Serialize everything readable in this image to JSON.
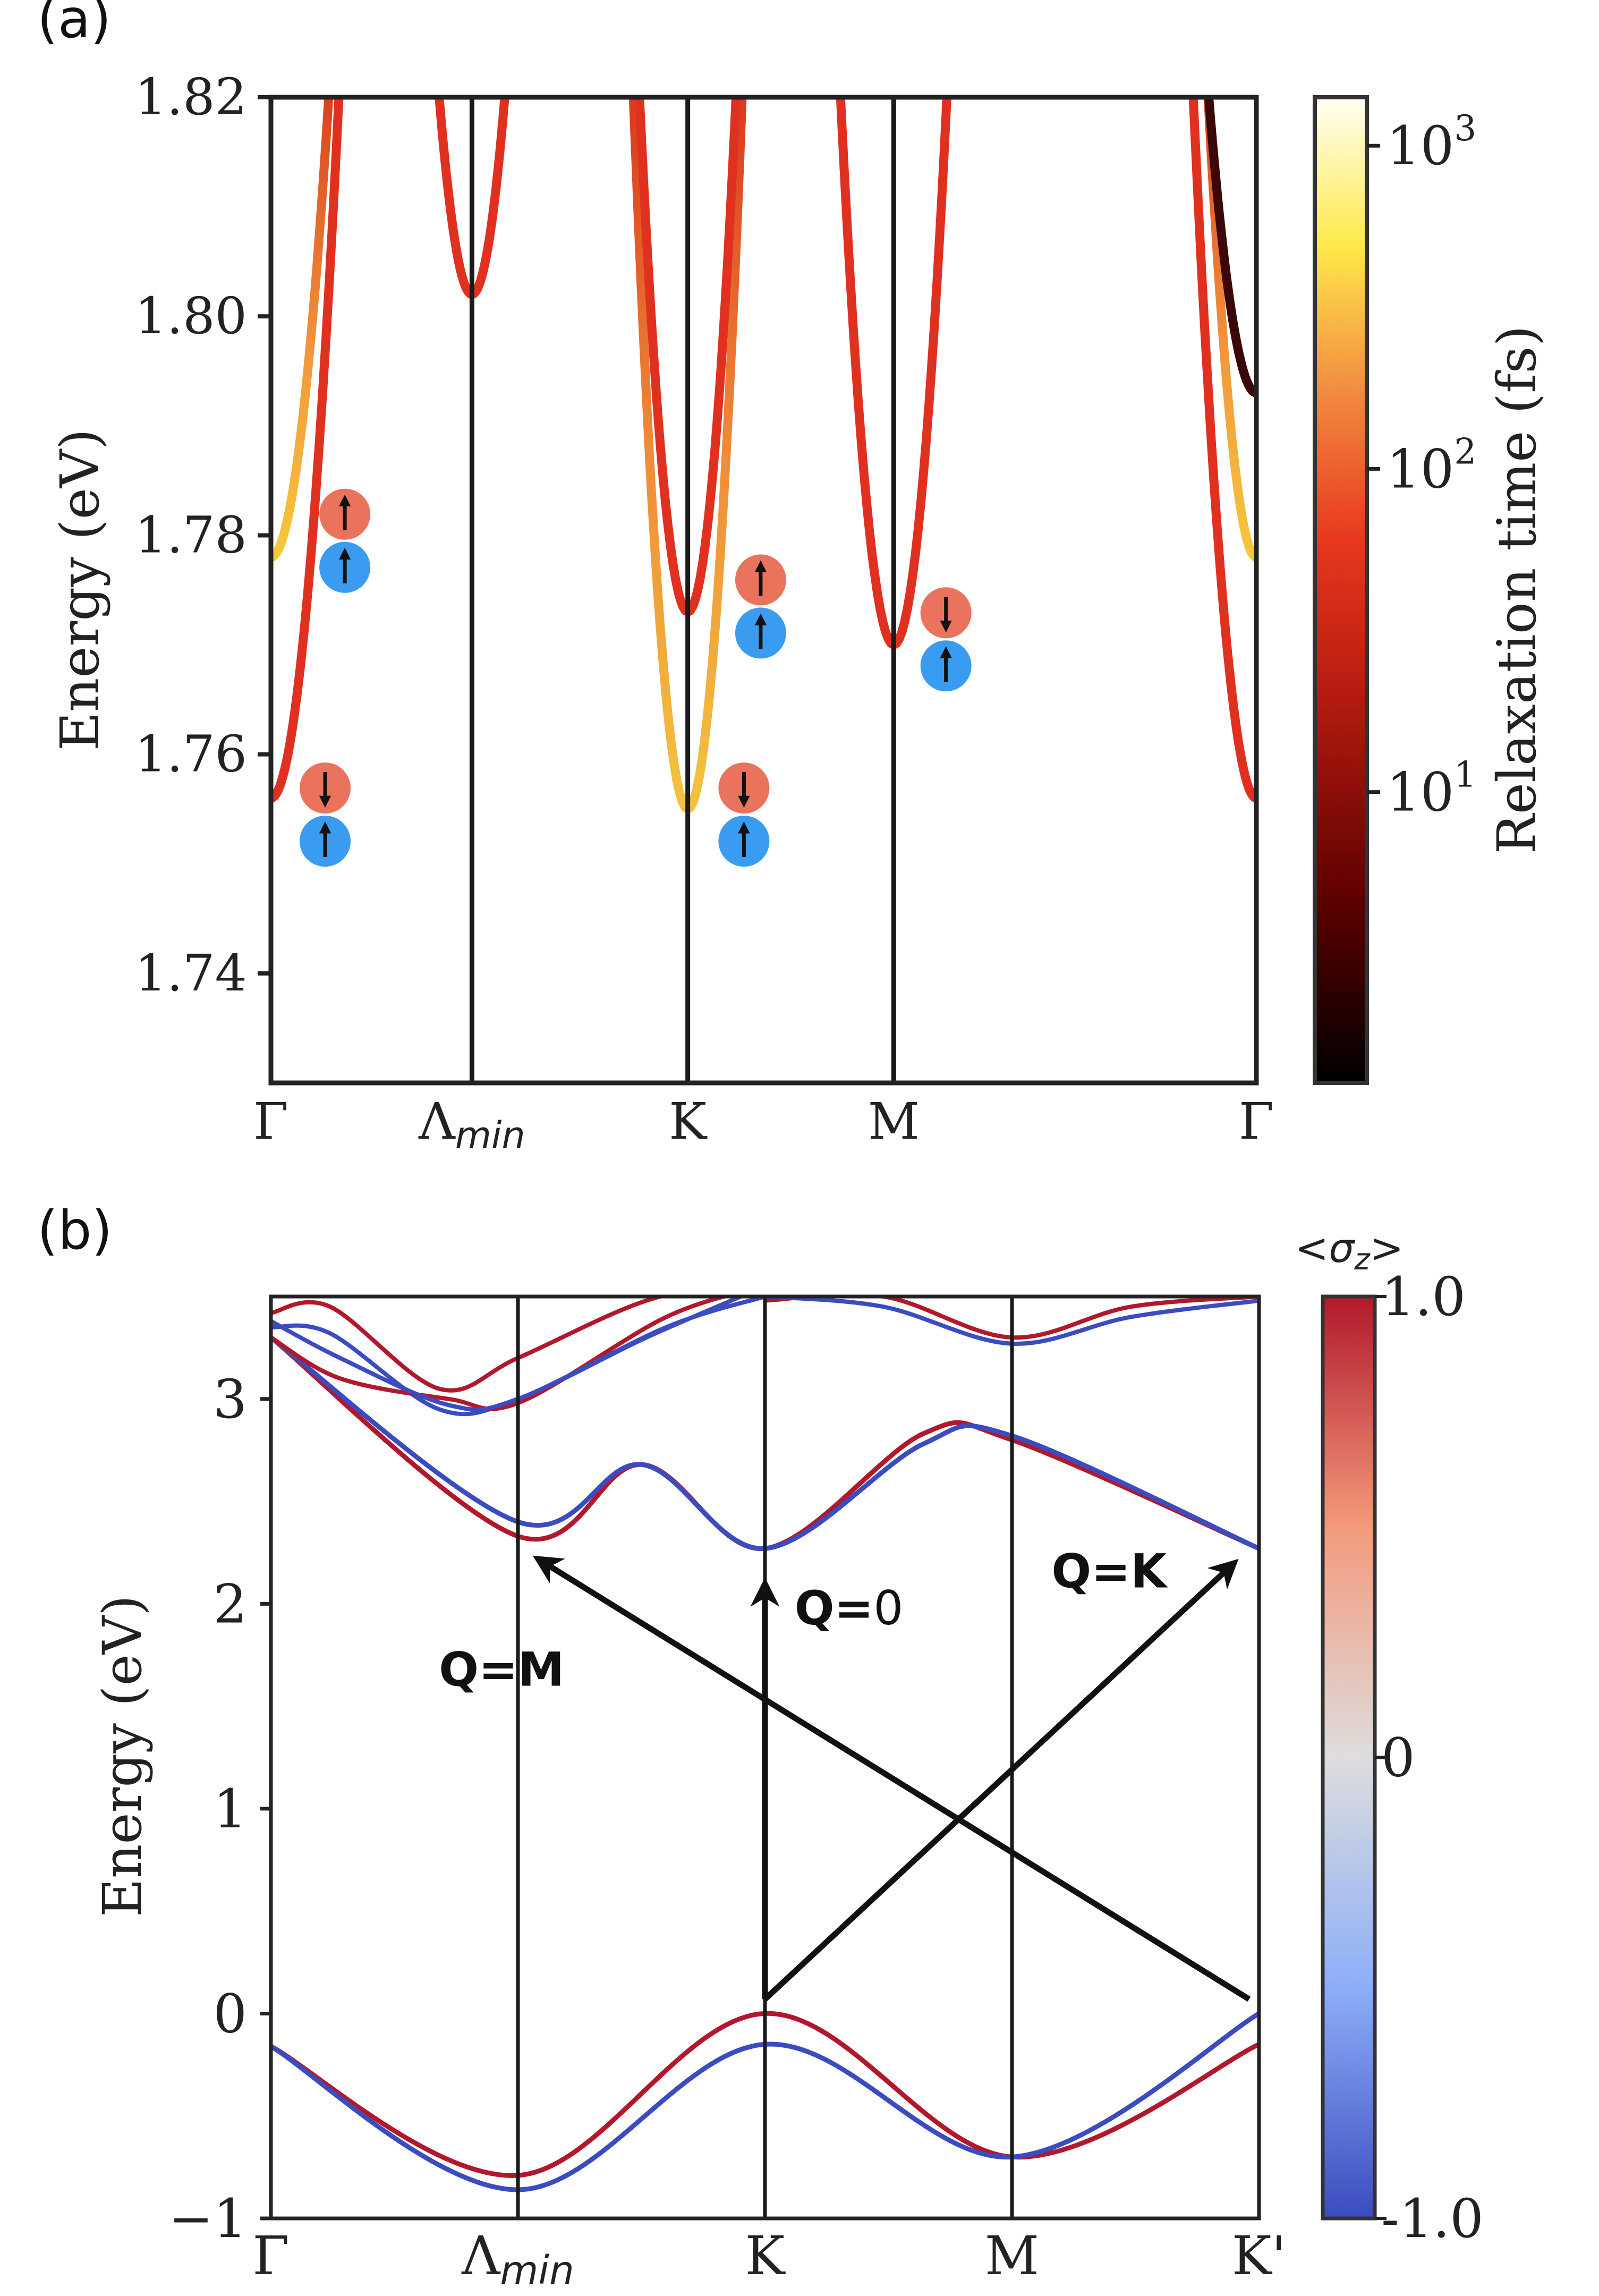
{
  "chart_data": [
    {
      "panel": "(a)",
      "type": "line",
      "ylabel": "Energy (eV)",
      "ylim": [
        1.73,
        1.82
      ],
      "yticks": [
        "1.82",
        "1.80",
        "1.78",
        "1.76",
        "1.74"
      ],
      "xticks": [
        "Γ",
        "Λ",
        "K",
        "M",
        "Γ"
      ],
      "xtick_sub": "min",
      "kpoints": [
        0,
        0.204,
        0.423,
        0.632,
        1.0
      ],
      "colorbar": {
        "label": "Relaxation time (fs)",
        "scale": "log",
        "tick_base": "10",
        "tick_exps": [
          "3",
          "2",
          "1"
        ]
      },
      "colors": {
        "hot_low": "#200000",
        "hot_mid": "#e03020",
        "hot_high": "#ffff60",
        "spin_red": "#e9735c",
        "spin_blue": "#3a9cf0"
      },
      "band_minima": [
        {
          "k": "Γ",
          "E": 1.756
        },
        {
          "k": "Γ",
          "E": 1.778
        },
        {
          "k": "Λmin",
          "E": 1.802
        },
        {
          "k": "K",
          "E": 1.755
        },
        {
          "k": "K",
          "E": 1.773
        },
        {
          "k": "M",
          "E": 1.77
        }
      ],
      "spin_annotations": [
        {
          "k": "Γ",
          "E": 1.7795,
          "top_spin": "up",
          "bottom_spin": "up"
        },
        {
          "k": "Γ",
          "E": 1.7545,
          "top_spin": "down",
          "bottom_spin": "up"
        },
        {
          "k": "K",
          "E": 1.7735,
          "top_spin": "up",
          "bottom_spin": "up"
        },
        {
          "k": "K",
          "E": 1.7545,
          "top_spin": "down",
          "bottom_spin": "up"
        },
        {
          "k": "M",
          "E": 1.7705,
          "top_spin": "down",
          "bottom_spin": "up"
        }
      ]
    },
    {
      "panel": "(b)",
      "type": "line",
      "ylabel": "Energy (eV)",
      "ylim": [
        -1.0,
        3.5
      ],
      "yticks": [
        "3",
        "2",
        "1",
        "0",
        "−1"
      ],
      "xticks": [
        "Γ",
        "Λ",
        "K",
        "M",
        "K'"
      ],
      "xtick_sub": "min",
      "kpoints": [
        0,
        0.25,
        0.5,
        0.75,
        1.0
      ],
      "colorbar": {
        "label": "<σ",
        "label_sub": "z",
        "label_end": ">",
        "ticks": [
          "1.0",
          "0",
          "-1.0"
        ],
        "range": [
          -1.0,
          1.0
        ]
      },
      "colors": {
        "spin_plus": "#b2182b",
        "spin_minus": "#3b4cc0",
        "neutral": "#dddddd"
      },
      "series": [
        {
          "name": "valence spin +1",
          "x": [
            0,
            0.25,
            0.5,
            0.75,
            1.0
          ],
          "y": [
            -0.16,
            -0.79,
            0.0,
            -0.7,
            -0.15
          ]
        },
        {
          "name": "valence spin -1",
          "x": [
            0,
            0.25,
            0.5,
            0.75,
            1.0
          ],
          "y": [
            -0.16,
            -0.86,
            -0.15,
            -0.7,
            0.0
          ]
        },
        {
          "name": "conduction spin +1",
          "x": [
            0,
            0.25,
            0.375,
            0.5,
            0.66,
            0.75,
            1.0
          ],
          "y": [
            3.3,
            2.33,
            2.68,
            2.27,
            2.83,
            2.8,
            2.27
          ]
        },
        {
          "name": "conduction spin -1",
          "x": [
            0,
            0.25,
            0.375,
            0.5,
            0.66,
            0.75,
            1.0
          ],
          "y": [
            3.3,
            2.4,
            2.68,
            2.27,
            2.78,
            2.82,
            2.27
          ]
        }
      ],
      "transitions": [
        {
          "label": "Q=",
          "label_value": "0",
          "from": "K",
          "to": "K"
        },
        {
          "label": "Q=M",
          "from": "K'",
          "to": "Λmin"
        },
        {
          "label": "Q=K",
          "from": "K",
          "to": "K'"
        }
      ]
    }
  ]
}
